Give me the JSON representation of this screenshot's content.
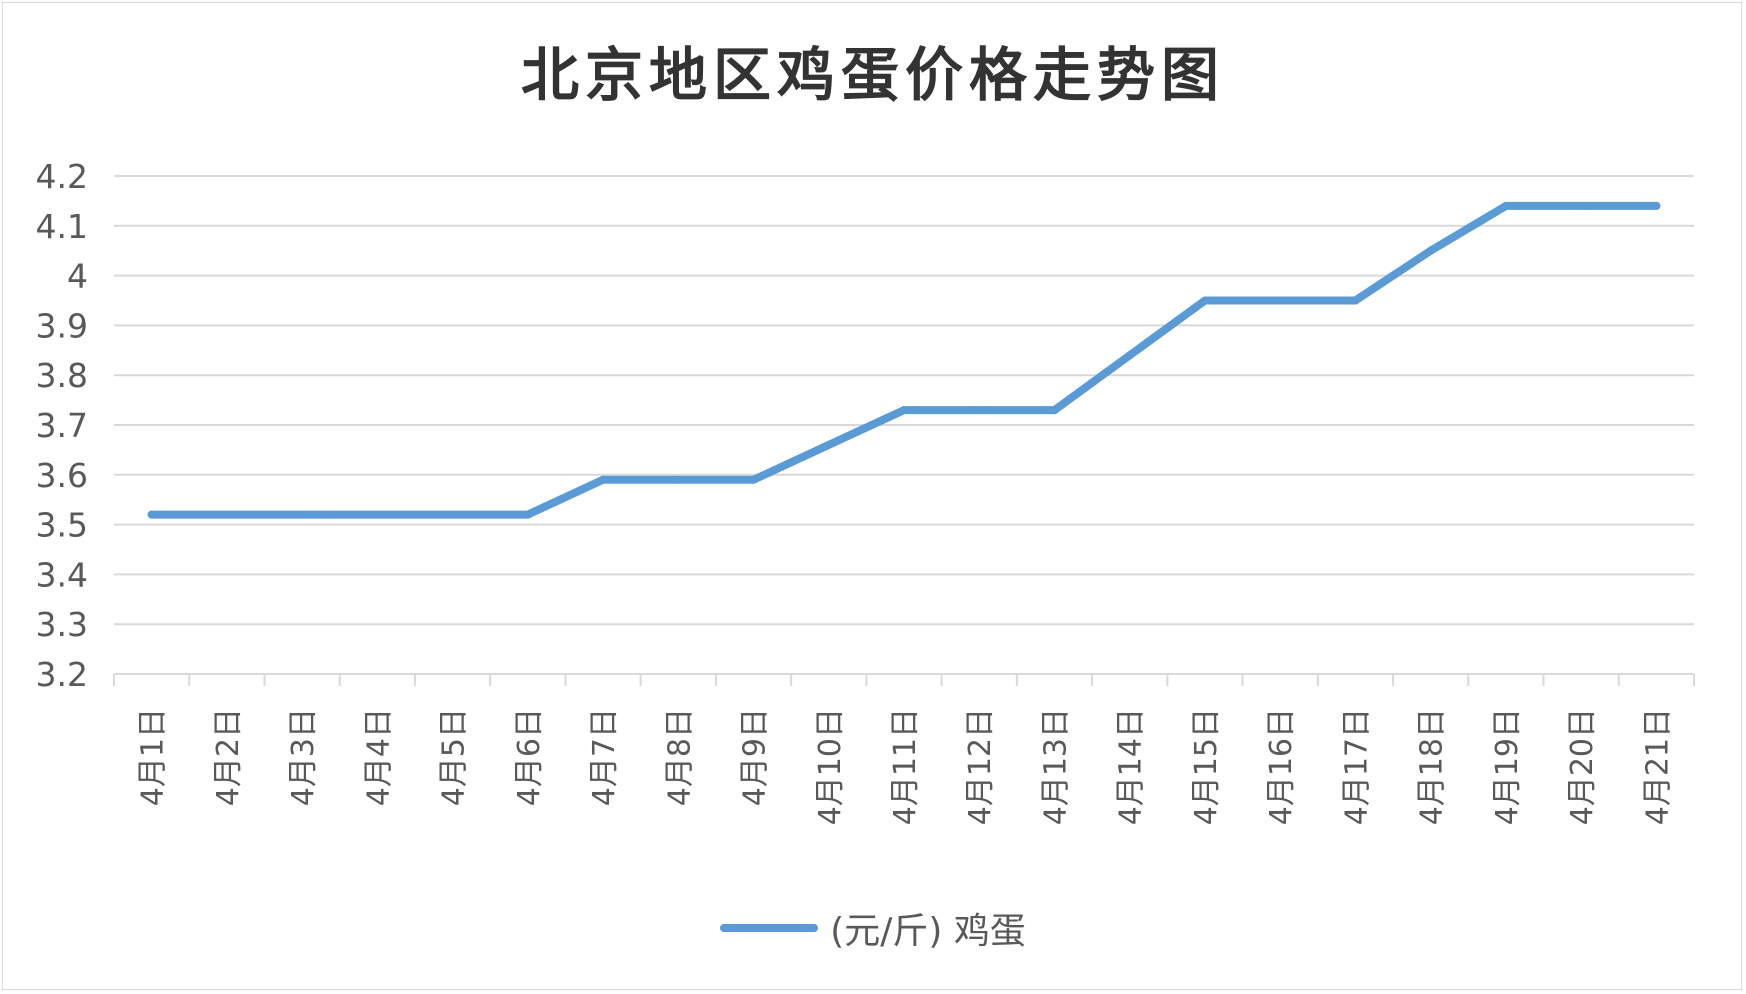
{
  "chart_data": {
    "type": "line",
    "title": "北京地区鸡蛋价格走势图",
    "xlabel": "",
    "ylabel": "",
    "categories": [
      "4月1日",
      "4月2日",
      "4月3日",
      "4月4日",
      "4月5日",
      "4月6日",
      "4月7日",
      "4月8日",
      "4月9日",
      "4月10日",
      "4月11日",
      "4月12日",
      "4月13日",
      "4月14日",
      "4月15日",
      "4月16日",
      "4月17日",
      "4月18日",
      "4月19日",
      "4月20日",
      "4月21日"
    ],
    "series": [
      {
        "name": "(元/斤) 鸡蛋",
        "color": "#5b9bd5",
        "values": [
          3.52,
          3.52,
          3.52,
          3.52,
          3.52,
          3.52,
          3.59,
          3.59,
          3.59,
          3.66,
          3.73,
          3.73,
          3.73,
          3.84,
          3.95,
          3.95,
          3.95,
          4.05,
          4.14,
          4.14,
          4.14
        ]
      }
    ],
    "ylim": [
      3.2,
      4.2
    ],
    "yticks": [
      "3.2",
      "3.3",
      "3.4",
      "3.5",
      "3.6",
      "3.7",
      "3.8",
      "3.9",
      "4",
      "4.1",
      "4.2"
    ],
    "grid": true,
    "legend_position": "bottom"
  },
  "colors": {
    "line": "#5b9bd5",
    "grid": "#d9d9d9",
    "text": "#595959",
    "title": "#333333"
  }
}
